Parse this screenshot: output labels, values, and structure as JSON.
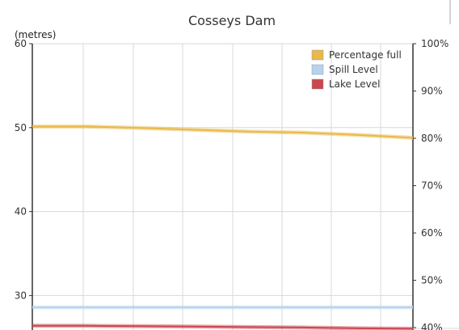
{
  "chart_data": {
    "type": "line",
    "title": "Cosseys Dam",
    "y_left": {
      "label": "(metres)",
      "min": 25.9,
      "max": 60,
      "ticks": [
        30,
        40,
        50,
        60
      ]
    },
    "y_right": {
      "min": 39.5,
      "max": 100,
      "ticks": [
        40,
        50,
        60,
        70,
        80,
        90,
        100
      ],
      "suffix": "%"
    },
    "x": [
      0,
      1,
      2,
      3,
      4,
      5,
      6,
      7
    ],
    "legend_position": "top-right",
    "grid": true,
    "series": [
      {
        "name": "Percentage full",
        "axis": "right",
        "color": "#e8b84a",
        "values": [
          82.5,
          82.5,
          82.2,
          81.8,
          81.4,
          81.2,
          80.7,
          80.1
        ]
      },
      {
        "name": "Spill Level",
        "axis": "left",
        "color": "#b5d3ee",
        "values": [
          28.6,
          28.6,
          28.6,
          28.6,
          28.6,
          28.6,
          28.6,
          28.6
        ]
      },
      {
        "name": "Lake Level",
        "axis": "left",
        "color": "#c9474f",
        "values": [
          26.4,
          26.4,
          26.35,
          26.3,
          26.25,
          26.2,
          26.1,
          26.05
        ]
      }
    ]
  }
}
